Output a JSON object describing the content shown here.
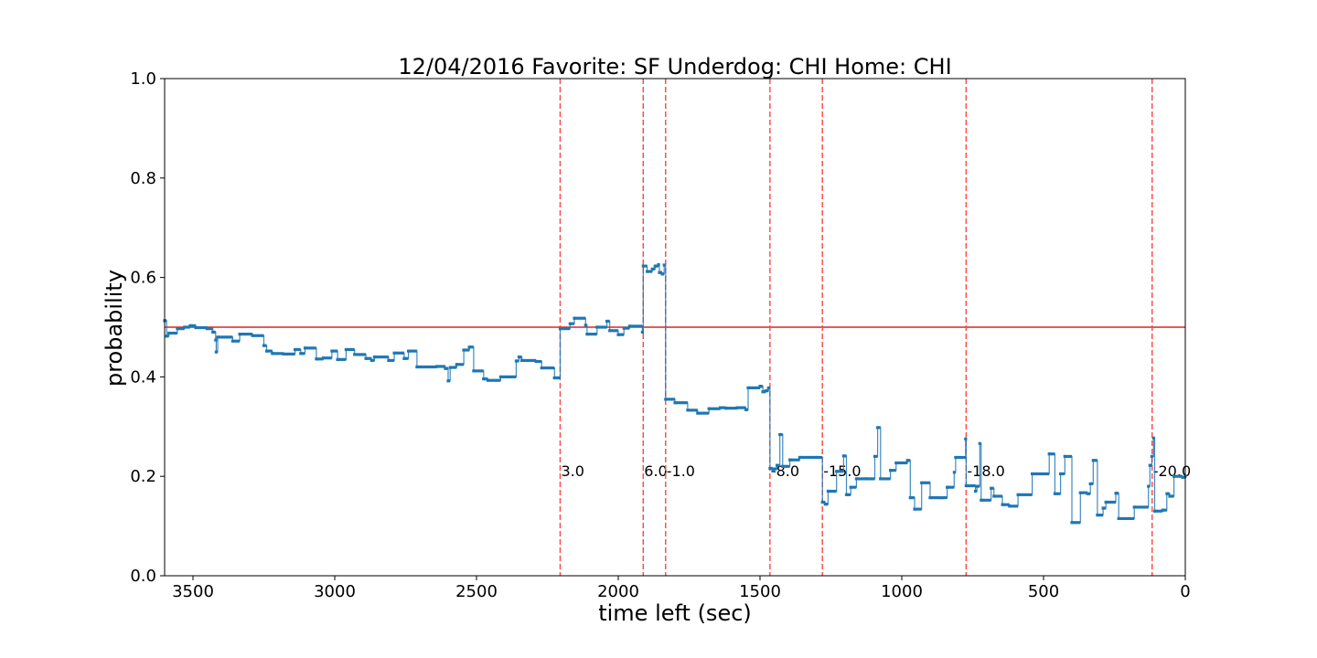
{
  "chart_data": {
    "type": "line",
    "title": "12/04/2016 Favorite: SF Underdog: CHI Home: CHI",
    "xlabel": "time left (sec)",
    "ylabel": "probability",
    "xlim": [
      3600,
      0
    ],
    "ylim": [
      0.0,
      1.0
    ],
    "x_ticks": [
      {
        "value": 3500,
        "label": "3500"
      },
      {
        "value": 3000,
        "label": "3000"
      },
      {
        "value": 2500,
        "label": "2500"
      },
      {
        "value": 2000,
        "label": "2000"
      },
      {
        "value": 1500,
        "label": "1500"
      },
      {
        "value": 1000,
        "label": "1000"
      },
      {
        "value": 500,
        "label": "500"
      },
      {
        "value": 0,
        "label": "0"
      }
    ],
    "y_ticks": [
      {
        "value": 0.0,
        "label": "0.0"
      },
      {
        "value": 0.2,
        "label": "0.2"
      },
      {
        "value": 0.4,
        "label": "0.4"
      },
      {
        "value": 0.6,
        "label": "0.6"
      },
      {
        "value": 0.8,
        "label": "0.8"
      },
      {
        "value": 1.0,
        "label": "1.0"
      }
    ],
    "grid": false,
    "colors": {
      "series": "#1f77b4",
      "reference": "#d62728",
      "events": "#ff4444"
    },
    "reference_line": {
      "y": 0.5
    },
    "events": [
      {
        "x": 2205,
        "label": "3.0"
      },
      {
        "x": 1912,
        "label": "6.0"
      },
      {
        "x": 1833,
        "label": "-1.0"
      },
      {
        "x": 1465,
        "label": "-8.0"
      },
      {
        "x": 1280,
        "label": "-15.0"
      },
      {
        "x": 773,
        "label": "-18.0"
      },
      {
        "x": 117,
        "label": "-20.0"
      }
    ],
    "series": [
      {
        "values": [
          [
            3600,
            0.513
          ],
          [
            3593,
            0.482
          ],
          [
            3585,
            0.488
          ],
          [
            3555,
            0.497
          ],
          [
            3530,
            0.5
          ],
          [
            3510,
            0.503
          ],
          [
            3490,
            0.499
          ],
          [
            3450,
            0.497
          ],
          [
            3430,
            0.49
          ],
          [
            3420,
            0.474
          ],
          [
            3418,
            0.45
          ],
          [
            3413,
            0.48
          ],
          [
            3360,
            0.472
          ],
          [
            3335,
            0.486
          ],
          [
            3290,
            0.483
          ],
          [
            3250,
            0.463
          ],
          [
            3240,
            0.452
          ],
          [
            3220,
            0.447
          ],
          [
            3180,
            0.446
          ],
          [
            3140,
            0.455
          ],
          [
            3120,
            0.447
          ],
          [
            3105,
            0.458
          ],
          [
            3065,
            0.436
          ],
          [
            3040,
            0.438
          ],
          [
            3010,
            0.452
          ],
          [
            2990,
            0.435
          ],
          [
            2960,
            0.455
          ],
          [
            2930,
            0.445
          ],
          [
            2890,
            0.437
          ],
          [
            2870,
            0.433
          ],
          [
            2860,
            0.44
          ],
          [
            2810,
            0.433
          ],
          [
            2790,
            0.448
          ],
          [
            2755,
            0.437
          ],
          [
            2740,
            0.452
          ],
          [
            2710,
            0.42
          ],
          [
            2640,
            0.421
          ],
          [
            2610,
            0.417
          ],
          [
            2600,
            0.392
          ],
          [
            2593,
            0.419
          ],
          [
            2570,
            0.425
          ],
          [
            2545,
            0.454
          ],
          [
            2525,
            0.46
          ],
          [
            2510,
            0.412
          ],
          [
            2475,
            0.396
          ],
          [
            2460,
            0.393
          ],
          [
            2415,
            0.4
          ],
          [
            2360,
            0.432
          ],
          [
            2350,
            0.44
          ],
          [
            2340,
            0.433
          ],
          [
            2290,
            0.431
          ],
          [
            2270,
            0.418
          ],
          [
            2225,
            0.398
          ],
          [
            2215,
            0.398
          ],
          [
            2205,
            0.497
          ],
          [
            2170,
            0.507
          ],
          [
            2155,
            0.518
          ],
          [
            2115,
            0.504
          ],
          [
            2110,
            0.486
          ],
          [
            2075,
            0.5
          ],
          [
            2040,
            0.512
          ],
          [
            2030,
            0.493
          ],
          [
            2000,
            0.485
          ],
          [
            1980,
            0.498
          ],
          [
            1960,
            0.502
          ],
          [
            1915,
            0.49
          ],
          [
            1912,
            0.623
          ],
          [
            1898,
            0.612
          ],
          [
            1880,
            0.617
          ],
          [
            1870,
            0.623
          ],
          [
            1858,
            0.626
          ],
          [
            1855,
            0.61
          ],
          [
            1845,
            0.607
          ],
          [
            1838,
            0.625
          ],
          [
            1833,
            0.355
          ],
          [
            1800,
            0.348
          ],
          [
            1755,
            0.333
          ],
          [
            1720,
            0.327
          ],
          [
            1680,
            0.336
          ],
          [
            1640,
            0.338
          ],
          [
            1620,
            0.337
          ],
          [
            1580,
            0.338
          ],
          [
            1550,
            0.334
          ],
          [
            1542,
            0.378
          ],
          [
            1500,
            0.381
          ],
          [
            1490,
            0.37
          ],
          [
            1480,
            0.372
          ],
          [
            1470,
            0.378
          ],
          [
            1465,
            0.216
          ],
          [
            1455,
            0.211
          ],
          [
            1448,
            0.215
          ],
          [
            1440,
            0.222
          ],
          [
            1430,
            0.284
          ],
          [
            1420,
            0.22
          ],
          [
            1395,
            0.233
          ],
          [
            1360,
            0.238
          ],
          [
            1300,
            0.238
          ],
          [
            1280,
            0.148
          ],
          [
            1270,
            0.144
          ],
          [
            1260,
            0.17
          ],
          [
            1230,
            0.21
          ],
          [
            1205,
            0.241
          ],
          [
            1195,
            0.163
          ],
          [
            1180,
            0.178
          ],
          [
            1160,
            0.195
          ],
          [
            1125,
            0.195
          ],
          [
            1095,
            0.24
          ],
          [
            1085,
            0.298
          ],
          [
            1075,
            0.195
          ],
          [
            1040,
            0.212
          ],
          [
            1020,
            0.227
          ],
          [
            980,
            0.232
          ],
          [
            970,
            0.157
          ],
          [
            955,
            0.134
          ],
          [
            930,
            0.187
          ],
          [
            900,
            0.157
          ],
          [
            860,
            0.157
          ],
          [
            840,
            0.178
          ],
          [
            815,
            0.208
          ],
          [
            810,
            0.238
          ],
          [
            775,
            0.275
          ],
          [
            773,
            0.181
          ],
          [
            740,
            0.17
          ],
          [
            735,
            0.18
          ],
          [
            725,
            0.266
          ],
          [
            720,
            0.152
          ],
          [
            685,
            0.176
          ],
          [
            675,
            0.16
          ],
          [
            645,
            0.143
          ],
          [
            620,
            0.14
          ],
          [
            590,
            0.163
          ],
          [
            540,
            0.205
          ],
          [
            480,
            0.245
          ],
          [
            460,
            0.165
          ],
          [
            440,
            0.205
          ],
          [
            425,
            0.24
          ],
          [
            400,
            0.107
          ],
          [
            370,
            0.167
          ],
          [
            345,
            0.165
          ],
          [
            335,
            0.185
          ],
          [
            325,
            0.232
          ],
          [
            310,
            0.122
          ],
          [
            290,
            0.136
          ],
          [
            280,
            0.148
          ],
          [
            245,
            0.166
          ],
          [
            235,
            0.115
          ],
          [
            180,
            0.138
          ],
          [
            130,
            0.18
          ],
          [
            125,
            0.222
          ],
          [
            118,
            0.24
          ],
          [
            112,
            0.277
          ],
          [
            108,
            0.13
          ],
          [
            80,
            0.132
          ],
          [
            65,
            0.165
          ],
          [
            55,
            0.16
          ],
          [
            40,
            0.2
          ],
          [
            10,
            0.198
          ],
          [
            0,
            0.2
          ]
        ]
      }
    ]
  }
}
